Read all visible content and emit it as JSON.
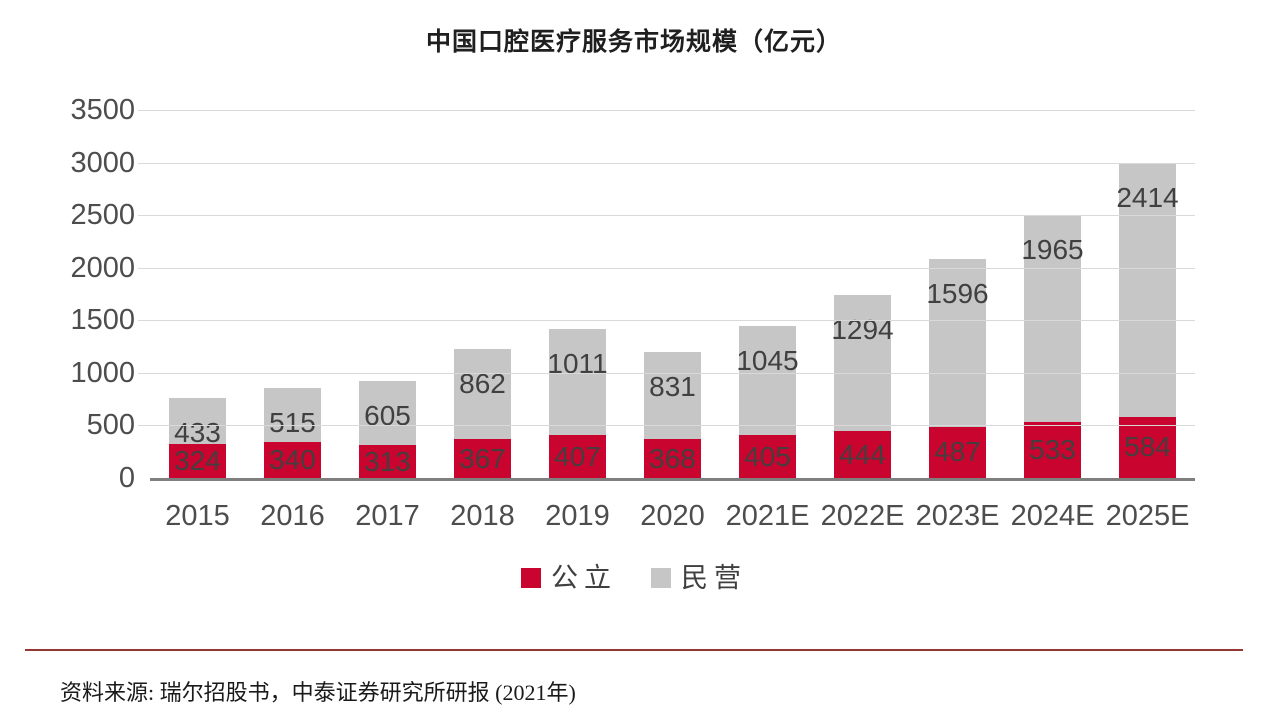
{
  "title": "中国口腔医疗服务市场规模（亿元）",
  "chart_data": {
    "type": "bar",
    "stacked": true,
    "title": "中国口腔医疗服务市场规模（亿元）",
    "categories": [
      "2015",
      "2016",
      "2017",
      "2018",
      "2019",
      "2020",
      "2021E",
      "2022E",
      "2023E",
      "2024E",
      "2025E"
    ],
    "series": [
      {
        "name": "公立",
        "color": "#c9052f",
        "values": [
          324,
          340,
          313,
          367,
          407,
          368,
          405,
          444,
          487,
          533,
          584
        ]
      },
      {
        "name": "民营",
        "color": "#c6c6c6",
        "values": [
          433,
          515,
          605,
          862,
          1011,
          831,
          1045,
          1294,
          1596,
          1965,
          2414
        ]
      }
    ],
    "xlabel": "",
    "ylabel": "",
    "ylim": [
      0,
      3500
    ],
    "ytick_interval": 500,
    "yticks": [
      "3500",
      "3000",
      "2500",
      "2000",
      "1500",
      "1000",
      "500",
      "0"
    ],
    "grid": true,
    "legend_position": "bottom",
    "label_placement": "inside"
  },
  "legend": {
    "items": [
      {
        "label": "公立",
        "color": "#c9052f"
      },
      {
        "label": "民营",
        "color": "#c6c6c6"
      }
    ]
  },
  "source_note": "资料来源: 瑞尔招股书，中泰证券研究所研报 (2021年)",
  "colors": {
    "public_bar": "#c9052f",
    "private_bar": "#c6c6c6",
    "gridline": "#d9d9d9",
    "axis_line": "#7f7f7f",
    "tick_text": "#4d4d4d",
    "data_label_text": "#404040",
    "divider": "#943634"
  }
}
